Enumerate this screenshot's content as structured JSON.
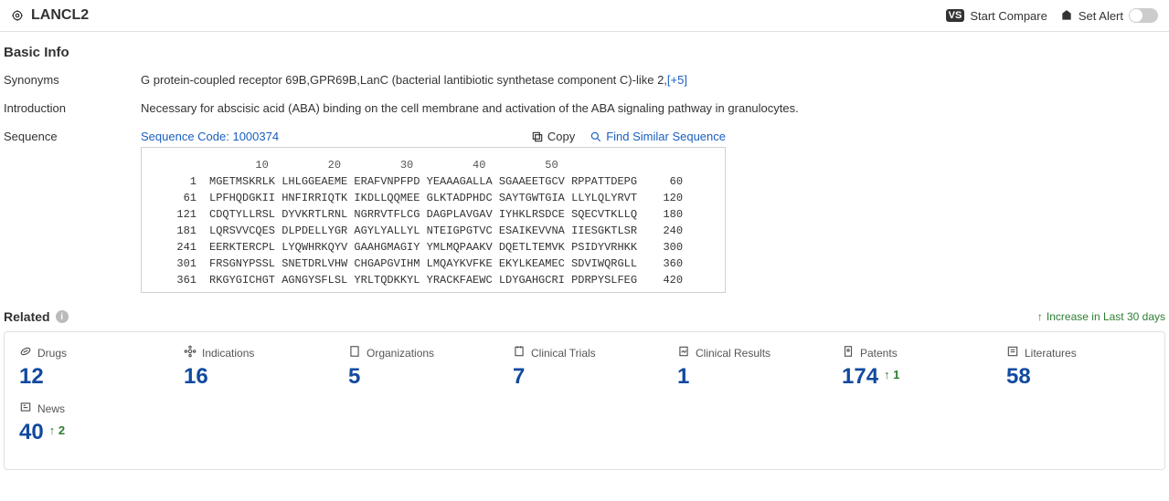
{
  "header": {
    "title": "LANCL2",
    "compare_label": "Start Compare",
    "alert_label": "Set Alert"
  },
  "basic": {
    "section_title": "Basic Info",
    "synonyms_label": "Synonyms",
    "synonyms_value": "G protein-coupled receptor 69B,GPR69B,LanC (bacterial lantibiotic synthetase component C)-like 2,",
    "synonyms_more": "[+5]",
    "intro_label": "Introduction",
    "intro_value": "Necessary for abscisic acid (ABA) binding on the cell membrane and activation of the ABA signaling pathway in granulocytes.",
    "sequence_label": "Sequence",
    "sequence_code_label": "Sequence Code: 1000374",
    "copy_label": "Copy",
    "find_label": "Find Similar Sequence",
    "ruler": "       10         20         30         40         50",
    "seq": [
      {
        "s": "1",
        "t": "MGETMSKRLK LHLGGEAEME ERAFVNPFPD YEAAAGALLA SGAAEETGCV RPPATTDEPG",
        "e": "60"
      },
      {
        "s": "61",
        "t": "LPFHQDGKII HNFIRRIQTK IKDLLQQMEE GLKTADPHDC SAYTGWTGIA LLYLQLYRVT",
        "e": "120"
      },
      {
        "s": "121",
        "t": "CDQTYLLRSL DYVKRTLRNL NGRRVTFLCG DAGPLAVGAV IYHKLRSDCE SQECVTKLLQ",
        "e": "180"
      },
      {
        "s": "181",
        "t": "LQRSVVCQES DLPDELLYGR AGYLYALLYL NTEIGPGTVC ESAIKEVVNA IIESGKTLSR",
        "e": "240"
      },
      {
        "s": "241",
        "t": "EERKTERCPL LYQWHRKQYV GAAHGMAGIY YMLMQPAAKV DQETLTEMVK PSIDYVRHKK",
        "e": "300"
      },
      {
        "s": "301",
        "t": "FRSGNYPSSL SNETDRLVHW CHGAPGVIHM LMQAYKVFKE EKYLKEAMEC SDVIWQRGLL",
        "e": "360"
      },
      {
        "s": "361",
        "t": "RKGYGICHGT AGNGYSFLSL YRLTQDKKYL YRACKFAEWC LDYGAHGCRI PDRPYSLFEG",
        "e": "420"
      }
    ]
  },
  "related": {
    "title": "Related",
    "increase_label": "Increase in Last 30 days",
    "cards": [
      {
        "label": "Drugs",
        "value": "12",
        "inc": ""
      },
      {
        "label": "Indications",
        "value": "16",
        "inc": ""
      },
      {
        "label": "Organizations",
        "value": "5",
        "inc": ""
      },
      {
        "label": "Clinical Trials",
        "value": "7",
        "inc": ""
      },
      {
        "label": "Clinical Results",
        "value": "1",
        "inc": ""
      },
      {
        "label": "Patents",
        "value": "174",
        "inc": "1"
      },
      {
        "label": "Literatures",
        "value": "58",
        "inc": ""
      },
      {
        "label": "News",
        "value": "40",
        "inc": "2"
      }
    ]
  },
  "style": {
    "link_color": "#1a5fbf",
    "value_color": "#114a9e",
    "increase_color": "#2e7d32"
  }
}
